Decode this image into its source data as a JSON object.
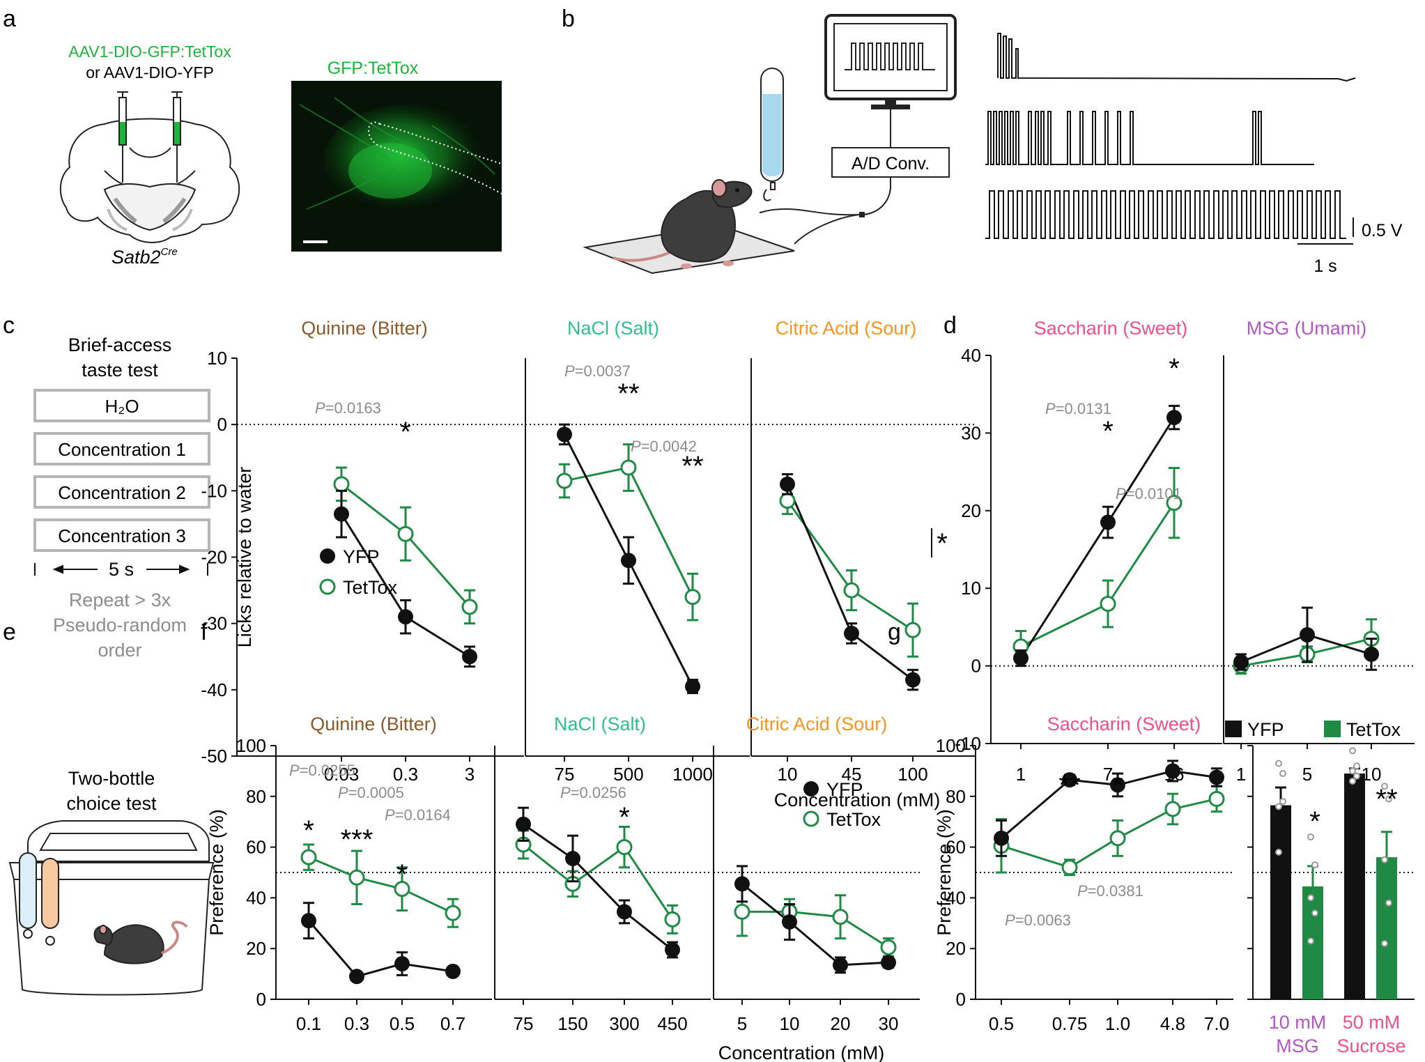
{
  "colors": {
    "yfp": "#111111",
    "tettox": "#1e8a44",
    "gfp": "#1db43a",
    "gray": "#8c8c8c",
    "bitter": "#8a5a2b",
    "salt": "#2fbf88",
    "sour": "#f7941d",
    "sweet": "#ee4f8a",
    "umami": "#b455c8"
  },
  "panels": {
    "a": {
      "letter": "a",
      "virus_line1": "AAV1-DIO-GFP:TetTox",
      "virus_line2": "or  AAV1-DIO-YFP",
      "mouse_line": "Satb2",
      "mouse_sup": "Cre",
      "micrograph_title": "GFP:TetTox"
    },
    "b": {
      "letter": "b",
      "converter_label": "A/D Conv.",
      "scale_v": "0.5 V",
      "scale_t": "1 s"
    },
    "c": {
      "letter": "c",
      "protocol_title1": "Brief-access",
      "protocol_title2": "taste test",
      "protocol_boxes": [
        "H₂O",
        "Concentration 1",
        "Concentration 2",
        "Concentration 3"
      ],
      "timing": "5 s",
      "repeat1": "Repeat > 3x",
      "repeat2": "Pseudo-random",
      "repeat3": "order"
    },
    "d": {
      "letter": "d"
    },
    "e": {
      "letter": "e",
      "title1": "Two-bottle",
      "title2": "choice test"
    },
    "f": {
      "letter": "f"
    },
    "g": {
      "letter": "g"
    }
  },
  "legend": {
    "yfp": "YFP",
    "tettox": "TetTox"
  },
  "chart_data": [
    {
      "id": "c-quinine",
      "type": "line",
      "title": "Quinine (Bitter)",
      "ylabel": "Licks relative to water",
      "xlabel": "",
      "ylim": [
        -50,
        10
      ],
      "yticks": [
        10,
        0,
        -10,
        -20,
        -30,
        -40,
        -50
      ],
      "categories": [
        "0.03",
        "0.3",
        "3"
      ],
      "reference_line": 0,
      "series": [
        {
          "name": "YFP",
          "values": [
            -13.5,
            -29,
            -35
          ],
          "errors": [
            3.5,
            2.5,
            1.5
          ]
        },
        {
          "name": "TetTox",
          "values": [
            -9,
            -16.5,
            -27.5
          ],
          "errors": [
            2.5,
            4,
            2.5
          ]
        }
      ],
      "annotations": [
        {
          "text": "P=0.0163",
          "index": 1
        },
        {
          "text": "*",
          "index": 1
        }
      ]
    },
    {
      "id": "c-nacl",
      "type": "line",
      "title": "NaCl (Salt)",
      "ylim": [
        -50,
        10
      ],
      "categories": [
        "75",
        "500",
        "1000"
      ],
      "reference_line": 0,
      "series": [
        {
          "name": "YFP",
          "values": [
            -1.5,
            -20.5,
            -39.5
          ],
          "errors": [
            1.5,
            3.5,
            1
          ]
        },
        {
          "name": "TetTox",
          "values": [
            -8.5,
            -6.5,
            -26
          ],
          "errors": [
            2.5,
            3.5,
            3.5
          ]
        }
      ],
      "annotations": [
        {
          "text": "P=0.0037",
          "index": 1
        },
        {
          "text": "**",
          "index": 1
        },
        {
          "text": "P=0.0042",
          "index": 2
        },
        {
          "text": "**",
          "index": 2
        }
      ]
    },
    {
      "id": "c-citric",
      "type": "line",
      "title": "Citric Acid (Sour)",
      "xlabel": "Concentration (mM)",
      "ylim": [
        -50,
        10
      ],
      "categories": [
        "10",
        "45",
        "100"
      ],
      "reference_line": 0,
      "series": [
        {
          "name": "YFP",
          "values": [
            -9,
            -31.5,
            -38.5
          ],
          "errors": [
            1.5,
            1.5,
            1.5
          ]
        },
        {
          "name": "TetTox",
          "values": [
            -11.5,
            -25,
            -31
          ],
          "errors": [
            2,
            3,
            4
          ]
        }
      ],
      "annotations": [
        {
          "text": "*",
          "index": 2
        }
      ]
    },
    {
      "id": "d-saccharin",
      "type": "line",
      "title": "Saccharin (Sweet)",
      "ylim": [
        -10,
        40
      ],
      "yticks": [
        40,
        30,
        20,
        10,
        0,
        -10
      ],
      "categories": [
        "1",
        "7",
        "16"
      ],
      "reference_line": 0,
      "series": [
        {
          "name": "YFP",
          "values": [
            1,
            18.5,
            32
          ],
          "errors": [
            1,
            2,
            1.5
          ]
        },
        {
          "name": "TetTox",
          "values": [
            2.5,
            8,
            21
          ],
          "errors": [
            2,
            3,
            4.5
          ]
        }
      ],
      "annotations": [
        {
          "text": "P=0.0131",
          "index": 1
        },
        {
          "text": "*",
          "index": 1
        },
        {
          "text": "*",
          "index": 2
        },
        {
          "text": "P=0.0101",
          "index": 2
        }
      ]
    },
    {
      "id": "d-msg",
      "type": "line",
      "title": "MSG (Umami)",
      "ylim": [
        -10,
        40
      ],
      "categories": [
        "1",
        "5",
        "10"
      ],
      "reference_line": 0,
      "series": [
        {
          "name": "YFP",
          "values": [
            0.5,
            4,
            1.5
          ],
          "errors": [
            1,
            3.5,
            2
          ]
        },
        {
          "name": "TetTox",
          "values": [
            0,
            1.5,
            3.5
          ],
          "errors": [
            1,
            1,
            2.5
          ]
        }
      ]
    },
    {
      "id": "f-quinine",
      "type": "line",
      "title": "Quinine (Bitter)",
      "ylabel": "Preference (%)",
      "ylim": [
        0,
        100
      ],
      "yticks": [
        100,
        80,
        60,
        40,
        20,
        0
      ],
      "categories": [
        "0.1",
        "0.3",
        "0.5",
        "0.7"
      ],
      "reference_line": 50,
      "series": [
        {
          "name": "YFP",
          "values": [
            31,
            9,
            14,
            11
          ],
          "errors": [
            7,
            1.5,
            4.5,
            1.5
          ]
        },
        {
          "name": "TetTox",
          "values": [
            56,
            48,
            43.5,
            34
          ],
          "errors": [
            5,
            10.5,
            8.5,
            5.5
          ]
        }
      ],
      "annotations": [
        {
          "text": "P=0.0255",
          "index": 0
        },
        {
          "text": "P=0.0005",
          "index": 1
        },
        {
          "text": "P=0.0164",
          "index": 2
        },
        {
          "text": "*",
          "index": 0
        },
        {
          "text": "***",
          "index": 1
        },
        {
          "text": "*",
          "index": 2
        }
      ]
    },
    {
      "id": "f-nacl",
      "type": "line",
      "title": "NaCl (Salt)",
      "ylim": [
        0,
        100
      ],
      "categories": [
        "75",
        "150",
        "300",
        "450"
      ],
      "reference_line": 50,
      "series": [
        {
          "name": "YFP",
          "values": [
            69,
            55.5,
            34.5,
            19.5
          ],
          "errors": [
            6.5,
            9,
            4.5,
            3
          ]
        },
        {
          "name": "TetTox",
          "values": [
            61,
            45.5,
            60,
            31.5
          ],
          "errors": [
            5.5,
            5,
            8,
            5.5
          ]
        }
      ],
      "annotations": [
        {
          "text": "P=0.0256",
          "index": 2
        },
        {
          "text": "*",
          "index": 2
        }
      ]
    },
    {
      "id": "f-citric",
      "type": "line",
      "title": "Citric Acid (Sour)",
      "xlabel": "Concentration (mM)",
      "ylim": [
        0,
        100
      ],
      "categories": [
        "5",
        "10",
        "20",
        "30"
      ],
      "reference_line": 50,
      "series": [
        {
          "name": "YFP",
          "values": [
            45.5,
            30.5,
            13.5,
            14.5
          ],
          "errors": [
            7,
            7,
            3,
            2
          ]
        },
        {
          "name": "TetTox",
          "values": [
            34.5,
            34.5,
            32.5,
            20.5
          ],
          "errors": [
            9.5,
            5,
            8.5,
            3.5
          ]
        }
      ]
    },
    {
      "id": "g-saccharin",
      "type": "line",
      "title": "Saccharin (Sweet)",
      "ylabel": "Preference (%)",
      "ylim": [
        0,
        100
      ],
      "yticks": [
        100,
        80,
        60,
        40,
        20,
        0
      ],
      "categories": [
        "0.5",
        "0.75",
        "1.0",
        "4.8",
        "7.0"
      ],
      "reference_line": 50,
      "series": [
        {
          "name": "YFP",
          "values": [
            63.5,
            86.5,
            84.5,
            90,
            87.5
          ],
          "errors": [
            7,
            2,
            4.5,
            4,
            3.5
          ]
        },
        {
          "name": "TetTox",
          "values": [
            60.5,
            52,
            63.5,
            75,
            79
          ],
          "errors": [
            10.5,
            3,
            7,
            6,
            5
          ]
        }
      ],
      "annotations": [
        {
          "text": "**",
          "index": 1
        },
        {
          "text": "*",
          "index": 2
        },
        {
          "text": "P=0.0381",
          "index": 2
        },
        {
          "text": "P=0.0063",
          "index": 1
        }
      ]
    },
    {
      "id": "g-bars",
      "type": "bar",
      "ylim": [
        0,
        100
      ],
      "categories": [
        "10 mM MSG",
        "50 mM Sucrose"
      ],
      "reference_line": 50,
      "series": [
        {
          "name": "YFP",
          "values": [
            76.5,
            89
          ],
          "errors": [
            7,
            2
          ],
          "points": [
            [
              93,
              89,
              76,
              78,
              58
            ],
            [
              98,
              92,
              90,
              88,
              86
            ]
          ]
        },
        {
          "name": "TetTox",
          "values": [
            44.5,
            56
          ],
          "errors": [
            8,
            10
          ],
          "points": [
            [
              64,
              53,
              40,
              34,
              23
            ],
            [
              84,
              79,
              55,
              38,
              22
            ]
          ]
        }
      ],
      "annotations": [
        {
          "text": "*",
          "index": 0
        },
        {
          "text": "**",
          "index": 1
        }
      ]
    }
  ]
}
